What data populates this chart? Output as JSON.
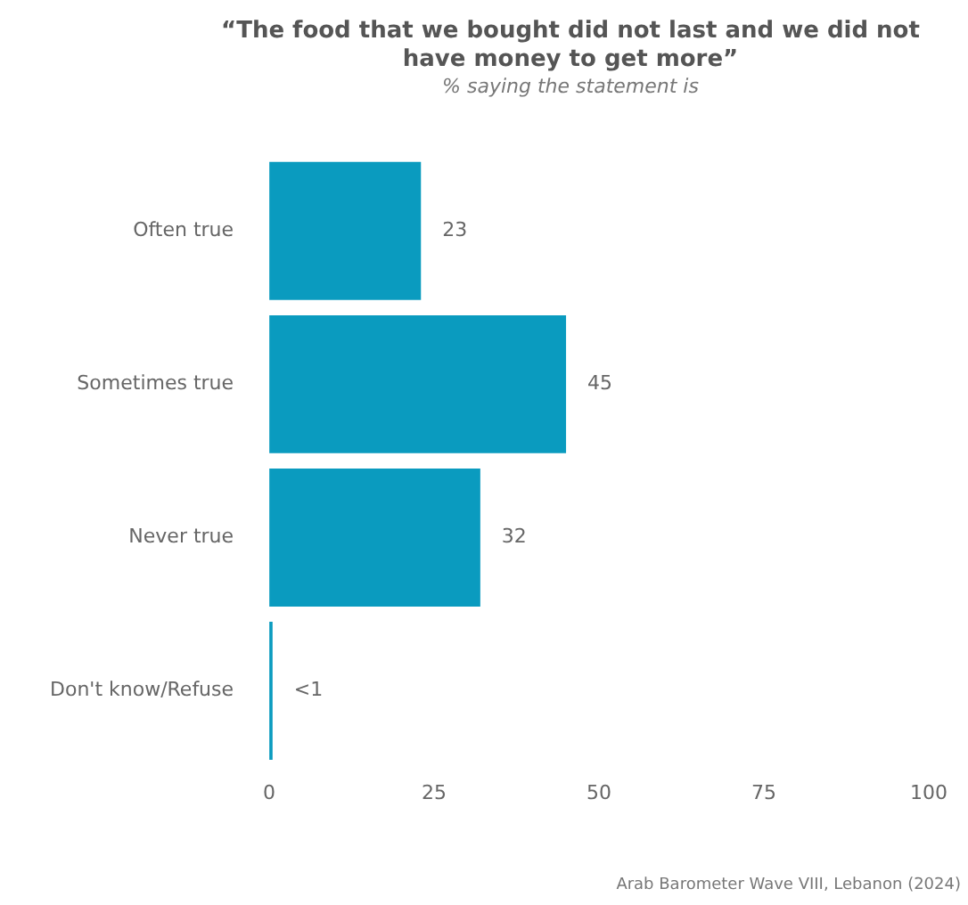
{
  "chart_data": {
    "type": "bar",
    "orientation": "horizontal",
    "title": "“The food that we bought did not last and we did not have money to get more”",
    "subtitle": "% saying the statement is",
    "categories": [
      "Often true",
      "Sometimes true",
      "Never true",
      "Don't know/Refuse"
    ],
    "values": [
      23,
      45,
      32,
      0.5
    ],
    "value_labels": [
      "23",
      "45",
      "32",
      "<1"
    ],
    "color": "#0a9bbf",
    "xlim": [
      0,
      100
    ],
    "xticks": [
      0,
      25,
      50,
      75,
      100
    ],
    "grid": false,
    "legend": false,
    "annotations": [
      "Arab Barometer Wave VIII, Lebanon (2024)"
    ]
  }
}
